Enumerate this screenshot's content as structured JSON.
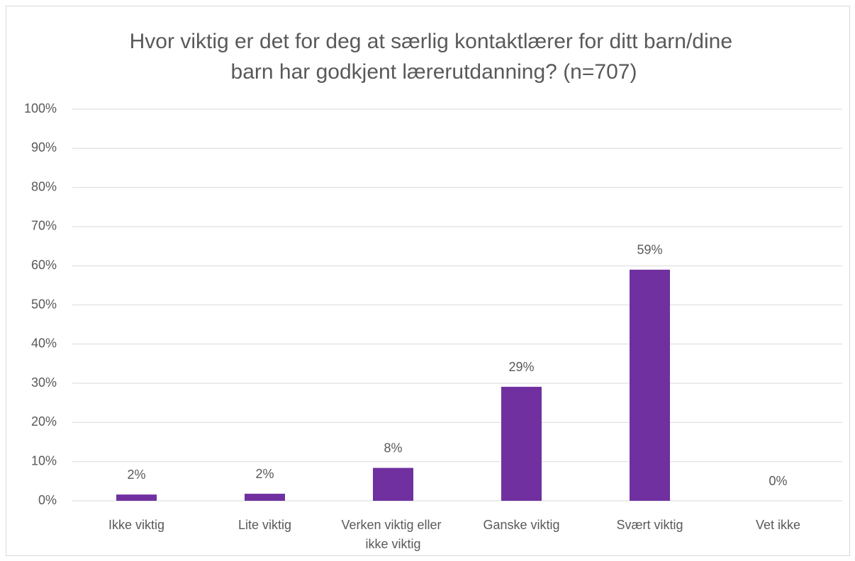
{
  "chart_data": {
    "type": "bar",
    "title": "Hvor viktig er det for deg at særlig kontaktlærer for ditt barn/dine barn har godkjent lærerutdanning? (n=707)",
    "categories": [
      "Ikke viktig",
      "Lite viktig",
      "Verken viktig eller ikke viktig",
      "Ganske viktig",
      "Svært viktig",
      "Vet ikke"
    ],
    "values": [
      1.6,
      1.8,
      8.4,
      29.1,
      59,
      0
    ],
    "value_labels": [
      "2%",
      "2%",
      "8%",
      "29%",
      "59%",
      "0%"
    ],
    "color": "#7030a0",
    "ylim": [
      0,
      100
    ],
    "yticks": [
      {
        "value": 0,
        "label": "0%"
      },
      {
        "value": 10,
        "label": "10%"
      },
      {
        "value": 20,
        "label": "20%"
      },
      {
        "value": 30,
        "label": "30%"
      },
      {
        "value": 40,
        "label": "40%"
      },
      {
        "value": 50,
        "label": "50%"
      },
      {
        "value": 60,
        "label": "60%"
      },
      {
        "value": 70,
        "label": "70%"
      },
      {
        "value": 80,
        "label": "80%"
      },
      {
        "value": 90,
        "label": "90%"
      },
      {
        "value": 100,
        "label": "100%"
      }
    ],
    "grid": true
  }
}
